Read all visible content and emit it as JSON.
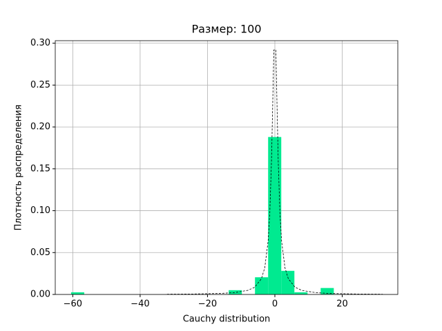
{
  "chart_data": {
    "type": "histogram",
    "title": "Размер: 100",
    "x_label": "Cauchy distribution",
    "y_label": "Плотность распределения",
    "bins": [
      -60.5,
      -56.6,
      -52.7,
      -48.8,
      -44.9,
      -41.0,
      -37.1,
      -33.2,
      -29.3,
      -25.4,
      -21.5,
      -17.6,
      -13.7,
      -9.8,
      -5.9,
      -2.0,
      1.9,
      5.8,
      9.7,
      13.6,
      17.5
    ],
    "values": [
      0.0026,
      0,
      0,
      0,
      0,
      0,
      0,
      0,
      0,
      0,
      0,
      0,
      0.0051,
      0,
      0.0205,
      0.188,
      0.0282,
      0.0026,
      0,
      0.0077
    ],
    "color": "#00ea90",
    "density": {
      "x": [
        -32,
        -24,
        -16,
        -12,
        -8,
        -6,
        -4,
        -3,
        -2,
        -1.5,
        -1,
        -0.6,
        -0.3,
        0.3,
        0.6,
        1,
        1.5,
        2,
        3,
        4,
        6,
        8,
        12,
        16,
        24,
        32
      ],
      "values": [
        0.00031,
        0.00055,
        0.00124,
        0.0022,
        0.0049,
        0.0086,
        0.0187,
        0.0318,
        0.0637,
        0.0979,
        0.1592,
        0.2341,
        0.292,
        0.292,
        0.2341,
        0.1592,
        0.0979,
        0.0637,
        0.0318,
        0.0187,
        0.0086,
        0.0049,
        0.0022,
        0.00124,
        0.00055,
        0.00031
      ],
      "color": "#000000"
    },
    "xlim": [
      -65.2,
      36.5
    ],
    "ylim": [
      0,
      0.303
    ],
    "xticks": [
      {
        "value": -60,
        "label": "−60"
      },
      {
        "value": -40,
        "label": "−40"
      },
      {
        "value": -20,
        "label": "−20"
      },
      0,
      20
    ],
    "yticks": [
      {
        "value": 0,
        "label": "0.00"
      },
      {
        "value": 0.05,
        "label": "0.05"
      },
      {
        "value": 0.1,
        "label": "0.10"
      },
      {
        "value": 0.15,
        "label": "0.15"
      },
      {
        "value": 0.2,
        "label": "0.20"
      },
      {
        "value": 0.25,
        "label": "0.25"
      },
      {
        "value": 0.3,
        "label": "0.30"
      }
    ],
    "grid": true
  }
}
